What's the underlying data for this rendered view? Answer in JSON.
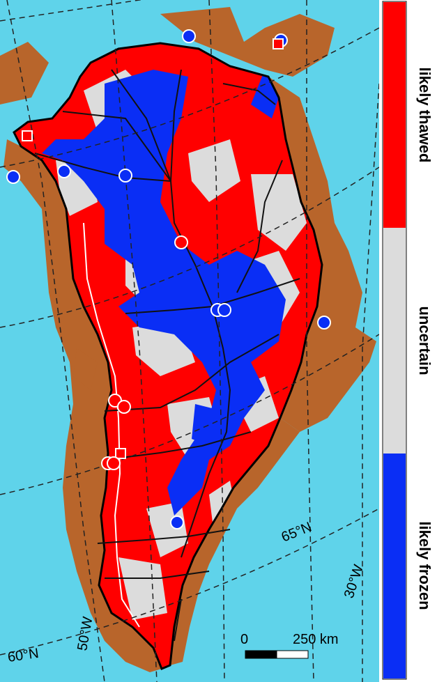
{
  "legend": {
    "items": [
      {
        "label": "likely thawed",
        "color": "#ff0000"
      },
      {
        "label": "uncertain",
        "color": "#dcdcdc"
      },
      {
        "label": "likely frozen",
        "color": "#0a2ef5"
      }
    ]
  },
  "map": {
    "graticule_labels": {
      "lat_65": "65°N",
      "lat_60": "60°N",
      "lon_30": "30°W",
      "lon_50": "50°W"
    },
    "scale_bar": {
      "start_label": "0",
      "end_label": "250 km"
    },
    "colors": {
      "ocean": "#5fd3ea",
      "land": "#b8652b",
      "thawed": "#ff0000",
      "uncertain": "#dcdcdc",
      "frozen": "#0a2ef5"
    }
  }
}
